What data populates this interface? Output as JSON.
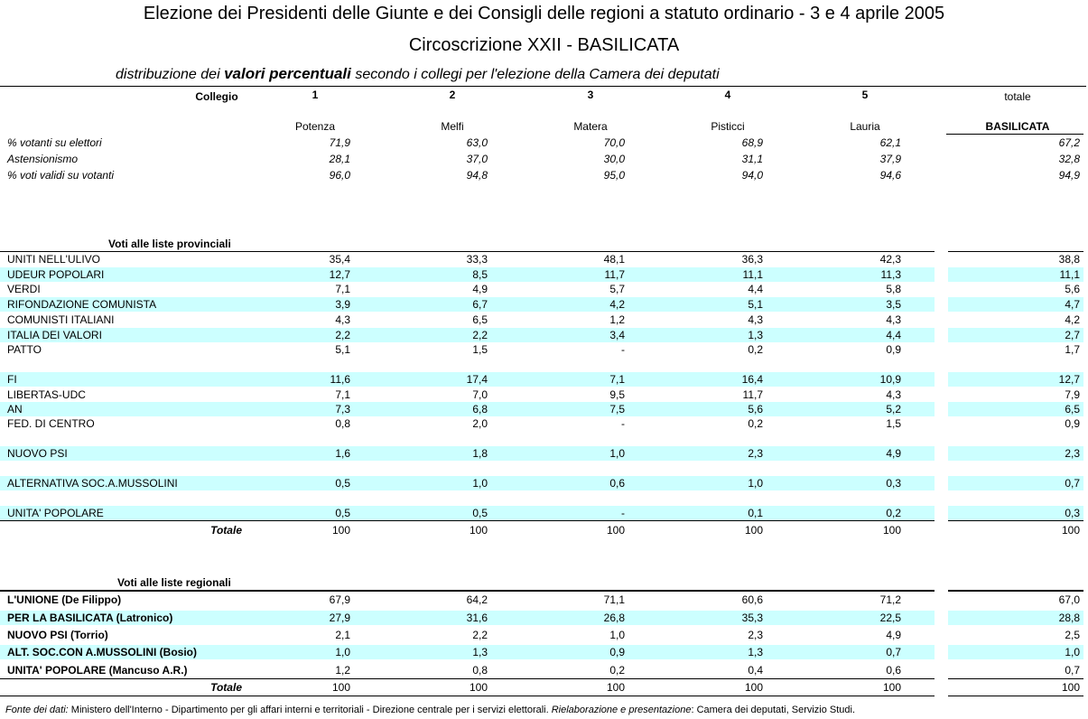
{
  "header": {
    "title": "Elezione dei Presidenti delle Giunte e dei Consigli delle regioni a statuto ordinario - 3 e 4 aprile 2005",
    "subtitle": "Circoscrizione XXII - BASILICATA",
    "description_prefix": "distribuzione dei",
    "description_bold": "valori percentuali",
    "description_suffix": "secondo i collegi per l'elezione della Camera dei deputati"
  },
  "columns": {
    "label": "Collegio",
    "numbers": [
      "1",
      "2",
      "3",
      "4",
      "5"
    ],
    "total_label": "totale",
    "names": [
      "Potenza",
      "Melfi",
      "Matera",
      "Pisticci",
      "Lauria"
    ],
    "total_name": "BASILICATA"
  },
  "turnout": {
    "rows": [
      {
        "label": "% votanti su elettori",
        "values": [
          "71,9",
          "63,0",
          "70,0",
          "68,9",
          "62,1"
        ],
        "total": "67,2"
      },
      {
        "label": "Astensionismo",
        "values": [
          "28,1",
          "37,0",
          "30,0",
          "31,1",
          "37,9"
        ],
        "total": "32,8"
      },
      {
        "label": "% voti validi su votanti",
        "values": [
          "96,0",
          "94,8",
          "95,0",
          "94,0",
          "94,6"
        ],
        "total": "94,9"
      }
    ]
  },
  "provincial": {
    "heading": "Voti alle liste provinciali",
    "rows": [
      {
        "label": "UNITI NELL'ULIVO",
        "values": [
          "35,4",
          "33,3",
          "48,1",
          "36,3",
          "42,3"
        ],
        "total": "38,8"
      },
      {
        "label": "UDEUR POPOLARI",
        "values": [
          "12,7",
          "8,5",
          "11,7",
          "11,1",
          "11,3"
        ],
        "total": "11,1"
      },
      {
        "label": "VERDI",
        "values": [
          "7,1",
          "4,9",
          "5,7",
          "4,4",
          "5,8"
        ],
        "total": "5,6"
      },
      {
        "label": "RIFONDAZIONE COMUNISTA",
        "values": [
          "3,9",
          "6,7",
          "4,2",
          "5,1",
          "3,5"
        ],
        "total": "4,7"
      },
      {
        "label": "COMUNISTI ITALIANI",
        "values": [
          "4,3",
          "6,5",
          "1,2",
          "4,3",
          "4,3"
        ],
        "total": "4,2"
      },
      {
        "label": "ITALIA DEI VALORI",
        "values": [
          "2,2",
          "2,2",
          "3,4",
          "1,3",
          "4,4"
        ],
        "total": "2,7"
      },
      {
        "label": "PATTO",
        "values": [
          "5,1",
          "1,5",
          "-",
          "0,2",
          "0,9"
        ],
        "total": "1,7"
      },
      {
        "label": "FI",
        "values": [
          "11,6",
          "17,4",
          "7,1",
          "16,4",
          "10,9"
        ],
        "total": "12,7"
      },
      {
        "label": "LIBERTAS-UDC",
        "values": [
          "7,1",
          "7,0",
          "9,5",
          "11,7",
          "4,3"
        ],
        "total": "7,9"
      },
      {
        "label": "AN",
        "values": [
          "7,3",
          "6,8",
          "7,5",
          "5,6",
          "5,2"
        ],
        "total": "6,5"
      },
      {
        "label": "FED. DI CENTRO",
        "values": [
          "0,8",
          "2,0",
          "-",
          "0,2",
          "1,5"
        ],
        "total": "0,9"
      },
      {
        "label": "NUOVO PSI",
        "values": [
          "1,6",
          "1,8",
          "1,0",
          "2,3",
          "4,9"
        ],
        "total": "2,3"
      },
      {
        "label": "ALTERNATIVA SOC.A.MUSSOLINI",
        "values": [
          "0,5",
          "1,0",
          "0,6",
          "1,0",
          "0,3"
        ],
        "total": "0,7"
      },
      {
        "label": "UNITA' POPOLARE",
        "values": [
          "0,5",
          "0,5",
          "-",
          "0,1",
          "0,2"
        ],
        "total": "0,3"
      }
    ],
    "total_row": {
      "label": "Totale",
      "values": [
        "100",
        "100",
        "100",
        "100",
        "100"
      ],
      "total": "100"
    }
  },
  "regional": {
    "heading": "Voti alle liste regionali",
    "rows": [
      {
        "label": "L'UNIONE  (De Filippo)",
        "values": [
          "67,9",
          "64,2",
          "71,1",
          "60,6",
          "71,2"
        ],
        "total": "67,0"
      },
      {
        "label": "PER LA BASILICATA  (Latronico)",
        "values": [
          "27,9",
          "31,6",
          "26,8",
          "35,3",
          "22,5"
        ],
        "total": "28,8"
      },
      {
        "label": "NUOVO PSI  (Torrio)",
        "values": [
          "2,1",
          "2,2",
          "1,0",
          "2,3",
          "4,9"
        ],
        "total": "2,5"
      },
      {
        "label": "ALT. SOC.CON A.MUSSOLINI (Bosio)",
        "values": [
          "1,0",
          "1,3",
          "0,9",
          "1,3",
          "0,7"
        ],
        "total": "1,0"
      },
      {
        "label": "UNITA' POPOLARE  (Mancuso A.R.)",
        "values": [
          "1,2",
          "0,8",
          "0,2",
          "0,4",
          "0,6"
        ],
        "total": "0,7"
      }
    ],
    "total_row": {
      "label": "Totale",
      "values": [
        "100",
        "100",
        "100",
        "100",
        "100"
      ],
      "total": "100"
    }
  },
  "footer": {
    "source_label": "Fonte dei dati:",
    "source": "Ministero dell'Interno - Dipartimento per gli affari interni e territoriali - Direzione centrale per i servizi elettorali.",
    "credit_label": "Rielaborazione e presentazione",
    "credit": ": Camera dei deputati, Servizio Studi."
  }
}
